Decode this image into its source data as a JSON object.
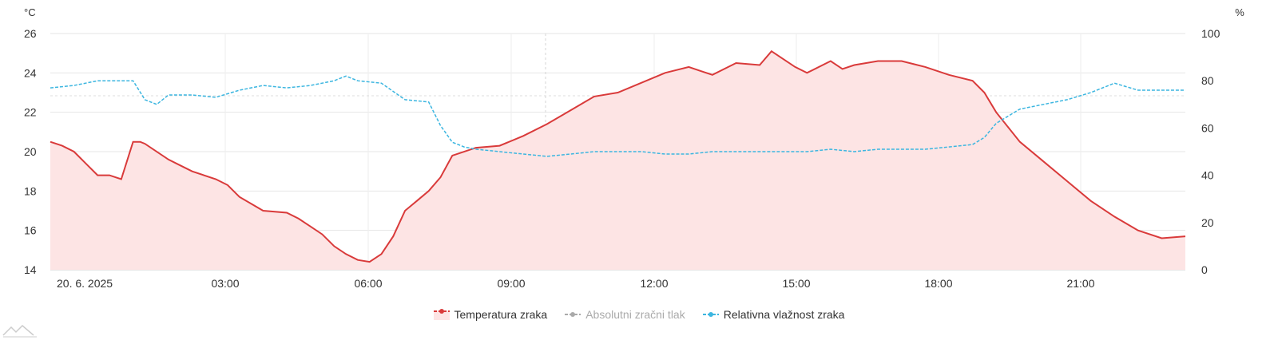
{
  "chart_data": {
    "type": "line",
    "x_start": "20. 6. 2025",
    "x_ticks": [
      "20. 6. 2025",
      "03:00",
      "06:00",
      "09:00",
      "12:00",
      "15:00",
      "18:00",
      "21:00"
    ],
    "y_left": {
      "unit": "°C",
      "ticks": [
        "26",
        "24",
        "22",
        "20",
        "18",
        "16",
        "14"
      ],
      "range": [
        14,
        26
      ]
    },
    "y_right": {
      "unit": "%",
      "ticks": [
        "100",
        "80",
        "60",
        "40",
        "20",
        "0"
      ],
      "range": [
        0,
        100
      ]
    },
    "x_range_hours": [
      0,
      24
    ],
    "grid": true,
    "legend_placement": "bottom-center",
    "series": [
      {
        "name": "Temperatura zraka",
        "axis": "left",
        "style": "area-line",
        "color": "#d93a3a",
        "fill": "#fde4e4",
        "x": [
          0,
          0.25,
          0.5,
          0.75,
          1.0,
          1.25,
          1.5,
          1.75,
          1.9,
          2.0,
          2.5,
          2.75,
          3.0,
          3.5,
          3.75,
          4.0,
          4.5,
          5.0,
          5.25,
          5.5,
          5.75,
          6.0,
          6.25,
          6.5,
          6.75,
          7.0,
          7.25,
          7.5,
          7.75,
          8.0,
          8.25,
          8.5,
          9.0,
          9.5,
          10.0,
          10.5,
          11.0,
          11.5,
          12.0,
          12.5,
          13.0,
          13.5,
          13.75,
          14.0,
          14.5,
          15.0,
          15.25,
          15.5,
          15.75,
          16.0,
          16.5,
          16.75,
          17.0,
          17.5,
          18.0,
          18.5,
          19.0,
          19.5,
          19.75,
          20.0,
          20.5,
          21.0,
          21.5,
          22.0,
          22.5,
          23.0,
          23.5,
          24.0
        ],
        "y": [
          20.5,
          20.3,
          20.0,
          19.4,
          18.8,
          18.8,
          18.6,
          20.5,
          20.5,
          20.4,
          19.6,
          19.3,
          19.0,
          18.6,
          18.3,
          17.7,
          17.0,
          16.9,
          16.6,
          16.2,
          15.8,
          15.2,
          14.8,
          14.5,
          14.4,
          14.8,
          15.7,
          17.0,
          17.5,
          18.0,
          18.7,
          19.8,
          20.2,
          20.3,
          20.8,
          21.4,
          22.1,
          22.8,
          23.0,
          23.5,
          24.0,
          24.3,
          24.1,
          23.9,
          24.5,
          24.4,
          25.1,
          24.7,
          24.3,
          24.0,
          24.6,
          24.2,
          24.4,
          24.6,
          24.6,
          24.3,
          23.9,
          23.6,
          23.0,
          22.0,
          20.5,
          19.5,
          18.5,
          17.5,
          16.7,
          16.0,
          15.6,
          15.7
        ]
      },
      {
        "name": "Absolutni zračni tlak",
        "axis": "left",
        "style": "hidden",
        "color": "#999999",
        "x": [],
        "y": []
      },
      {
        "name": "Relativna vlažnost zraka",
        "axis": "right",
        "style": "dashed-line",
        "color": "#3cb6e0",
        "x": [
          0,
          0.5,
          1.0,
          1.5,
          1.75,
          2.0,
          2.25,
          2.5,
          3.0,
          3.5,
          4.0,
          4.5,
          5.0,
          5.5,
          6.0,
          6.25,
          6.5,
          7.0,
          7.5,
          8.0,
          8.25,
          8.5,
          8.75,
          9.0,
          9.5,
          10.0,
          10.5,
          11.0,
          11.5,
          12.0,
          12.5,
          13.0,
          13.5,
          14.0,
          14.5,
          15.0,
          15.5,
          16.0,
          16.5,
          17.0,
          17.5,
          18.0,
          18.5,
          19.0,
          19.5,
          19.75,
          20.0,
          20.5,
          21.0,
          21.5,
          22.0,
          22.5,
          23.0,
          23.5,
          24.0
        ],
        "y": [
          77,
          78,
          80,
          80,
          80,
          72,
          70,
          74,
          74,
          73,
          76,
          78,
          77,
          78,
          80,
          82,
          80,
          79,
          72,
          71,
          61,
          54,
          52,
          51,
          50,
          49,
          48,
          49,
          50,
          50,
          50,
          49,
          49,
          50,
          50,
          50,
          50,
          50,
          51,
          50,
          51,
          51,
          51,
          52,
          53,
          56,
          62,
          68,
          70,
          72,
          75,
          79,
          76,
          76,
          76
        ]
      }
    ]
  },
  "legend": {
    "items": [
      "Temperatura zraka",
      "Absolutni zračni tlak",
      "Relativna vlažnost zraka"
    ]
  }
}
